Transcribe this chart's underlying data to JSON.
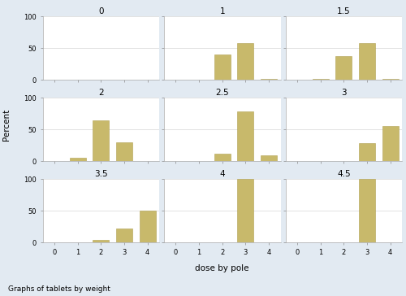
{
  "panels": [
    {
      "title": "0",
      "bars": [
        0,
        0,
        0,
        0,
        0
      ]
    },
    {
      "title": "1",
      "bars": [
        0,
        0,
        40,
        58,
        2
      ]
    },
    {
      "title": "1.5",
      "bars": [
        0,
        2,
        38,
        58,
        2
      ]
    },
    {
      "title": "2",
      "bars": [
        0,
        5,
        65,
        30,
        0
      ]
    },
    {
      "title": "2.5",
      "bars": [
        0,
        0,
        12,
        78,
        10
      ]
    },
    {
      "title": "3",
      "bars": [
        0,
        0,
        0,
        28,
        56
      ]
    },
    {
      "title": "3.5",
      "bars": [
        0,
        0,
        5,
        22,
        50
      ]
    },
    {
      "title": "4",
      "bars": [
        0,
        0,
        0,
        100,
        0
      ]
    },
    {
      "title": "4.5",
      "bars": [
        0,
        0,
        0,
        100,
        0
      ]
    }
  ],
  "bar_color": "#c8b96b",
  "bar_edgecolor": "#b0a050",
  "title_bg_color": "#d6e4f0",
  "outer_bg_color": "#e2eaf2",
  "inner_bg_color": "#ffffff",
  "ylabel": "Percent",
  "xlabel": "dose by pole",
  "footer": "Graphs of tablets by weight",
  "ylim": [
    0,
    100
  ],
  "yticks": [
    0,
    50,
    100
  ],
  "xticks": [
    0,
    1,
    2,
    3,
    4
  ],
  "title_fontsize": 7.5,
  "tick_fontsize": 6,
  "label_fontsize": 7.5,
  "footer_fontsize": 6.5
}
